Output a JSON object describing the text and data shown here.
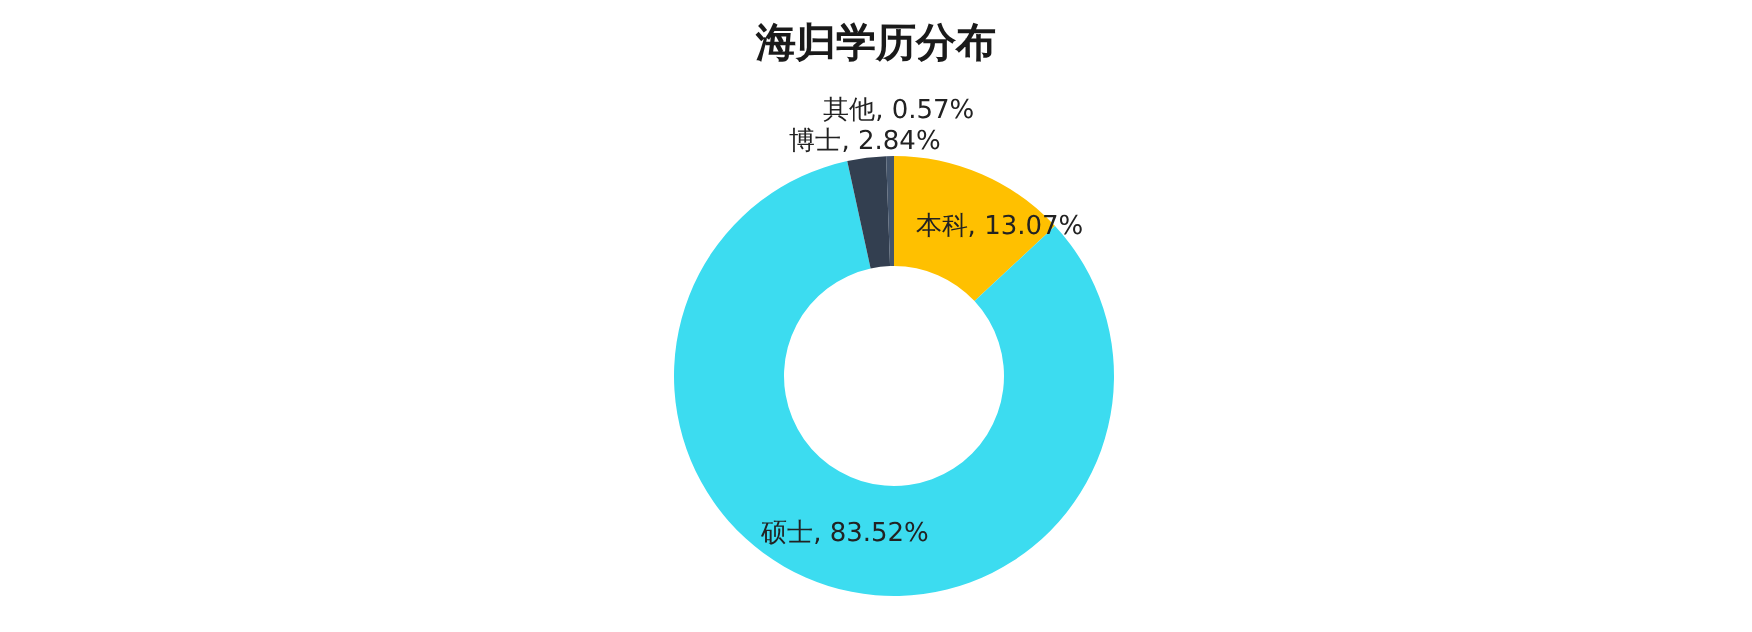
{
  "chart_data": {
    "type": "donut",
    "title": "海归学历分布",
    "categories": [
      "本科",
      "硕士",
      "博士",
      "其他"
    ],
    "values": [
      13.07,
      83.52,
      2.84,
      0.57
    ],
    "colors": [
      "#ffc000",
      "#3cdcf0",
      "#333f50",
      "#44546a"
    ],
    "value_labels": [
      "13.07%",
      "83.52%",
      "2.84%",
      "0.57%"
    ],
    "legend": false
  }
}
